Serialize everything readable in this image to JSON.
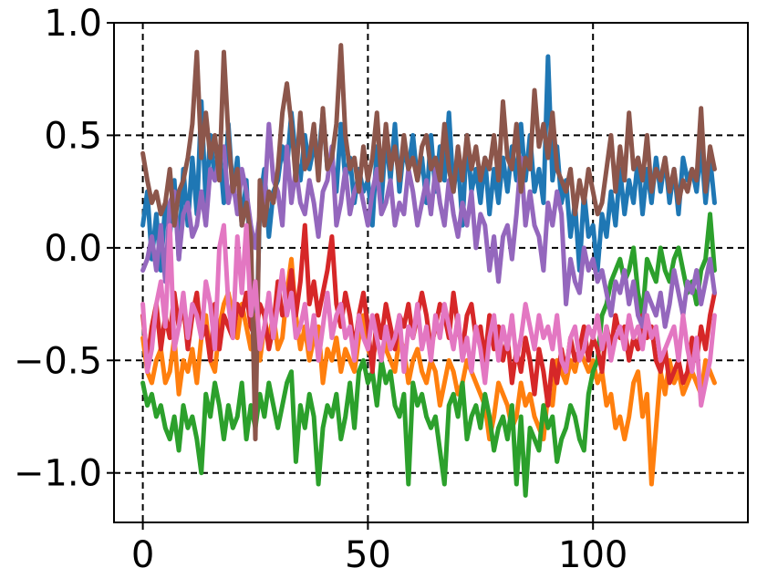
{
  "chart_data": {
    "type": "line",
    "title": "",
    "xlabel": "",
    "ylabel": "",
    "xlim": [
      -6.4,
      134.4
    ],
    "ylim": [
      -1.22,
      1.0
    ],
    "grid": true,
    "grid_style": "dashed",
    "legend": "none",
    "x_ticks": [
      0,
      50,
      100
    ],
    "x_tick_labels": [
      "0",
      "50",
      "100"
    ],
    "y_ticks": [
      1.0,
      0.5,
      0.0,
      -0.5,
      -1.0
    ],
    "y_tick_labels": [
      "1.0",
      "0.5",
      "0.0",
      "−0.5",
      "−1.0"
    ],
    "x": [
      0,
      1,
      2,
      3,
      4,
      5,
      6,
      7,
      8,
      9,
      10,
      11,
      12,
      13,
      14,
      15,
      16,
      17,
      18,
      19,
      20,
      21,
      22,
      23,
      24,
      25,
      26,
      27,
      28,
      29,
      30,
      31,
      32,
      33,
      34,
      35,
      36,
      37,
      38,
      39,
      40,
      41,
      42,
      43,
      44,
      45,
      46,
      47,
      48,
      49,
      50,
      51,
      52,
      53,
      54,
      55,
      56,
      57,
      58,
      59,
      60,
      61,
      62,
      63,
      64,
      65,
      66,
      67,
      68,
      69,
      70,
      71,
      72,
      73,
      74,
      75,
      76,
      77,
      78,
      79,
      80,
      81,
      82,
      83,
      84,
      85,
      86,
      87,
      88,
      89,
      90,
      91,
      92,
      93,
      94,
      95,
      96,
      97,
      98,
      99,
      100,
      101,
      102,
      103,
      104,
      105,
      106,
      107,
      108,
      109,
      110,
      111,
      112,
      113,
      114,
      115,
      116,
      117,
      118,
      119,
      120,
      121,
      122,
      123,
      124,
      125,
      126,
      127
    ],
    "series": [
      {
        "color": "#1f77b4",
        "values": [
          0.1,
          0.25,
          -0.05,
          0.15,
          -0.1,
          0.2,
          0.05,
          0.3,
          -0.05,
          0.35,
          0.1,
          0.4,
          0.15,
          0.65,
          0.2,
          0.5,
          0.3,
          0.45,
          0.2,
          0.55,
          0.25,
          0.4,
          0.1,
          0.3,
          -0.1,
          -0.6,
          0.2,
          0.35,
          0.05,
          0.25,
          0.3,
          0.45,
          0.35,
          0.6,
          0.4,
          0.3,
          0.5,
          0.35,
          0.45,
          0.4,
          0.6,
          0.35,
          0.4,
          0.25,
          0.55,
          0.3,
          0.4,
          0.2,
          0.35,
          0.25,
          0.3,
          0.1,
          0.45,
          0.2,
          0.5,
          0.3,
          0.55,
          0.25,
          0.45,
          0.35,
          0.5,
          0.3,
          0.4,
          0.2,
          0.5,
          0.25,
          0.45,
          0.3,
          0.6,
          0.25,
          0.4,
          0.1,
          0.5,
          0.25,
          0.35,
          0.2,
          0.4,
          0.15,
          0.35,
          0.2,
          0.4,
          0.25,
          0.45,
          0.3,
          0.55,
          0.3,
          0.5,
          0.25,
          0.35,
          0.2,
          0.85,
          0.3,
          0.45,
          0.2,
          0.3,
          0.05,
          0.2,
          -0.1,
          0.25,
          0.05,
          0.1,
          -0.1,
          0.15,
          0.05,
          0.25,
          0.1,
          0.35,
          0.15,
          0.3,
          0.2,
          0.4,
          0.15,
          0.35,
          0.2,
          0.4,
          0.25,
          0.4,
          0.2,
          0.35,
          0.15,
          0.4,
          0.3,
          0.35,
          0.25,
          0.45,
          0.2,
          0.4,
          0.2
        ]
      },
      {
        "color": "#ff7f0e",
        "values": [
          -0.4,
          -0.55,
          -0.6,
          -0.5,
          -0.45,
          -0.6,
          -0.55,
          -0.4,
          -0.65,
          -0.5,
          -0.55,
          -0.45,
          -0.6,
          -0.4,
          -0.3,
          -0.5,
          -0.55,
          -0.35,
          -0.25,
          -0.2,
          -0.3,
          -0.4,
          -0.25,
          -0.35,
          -0.45,
          -0.3,
          -0.5,
          -0.35,
          -0.4,
          -0.3,
          -0.45,
          -0.4,
          -0.2,
          -0.05,
          -0.3,
          -0.45,
          -0.35,
          -0.5,
          -0.4,
          -0.35,
          -0.6,
          -0.45,
          -0.5,
          -0.4,
          -0.55,
          -0.45,
          -0.5,
          -0.55,
          -0.4,
          -0.3,
          -0.45,
          -0.5,
          -0.4,
          -0.35,
          -0.45,
          -0.5,
          -0.55,
          -0.4,
          -0.45,
          -0.6,
          -0.5,
          -0.45,
          -0.55,
          -0.6,
          -0.5,
          -0.55,
          -0.7,
          -0.6,
          -0.5,
          -0.55,
          -0.65,
          -0.6,
          -0.5,
          -0.55,
          -0.6,
          -0.65,
          -0.7,
          -0.85,
          -0.75,
          -0.6,
          -0.65,
          -0.7,
          -0.8,
          -0.75,
          -0.6,
          -0.7,
          -0.65,
          -0.75,
          -0.8,
          -0.85,
          -0.65,
          -0.7,
          -0.5,
          -0.55,
          -0.6,
          -0.5,
          -0.55,
          -0.45,
          -0.5,
          -0.55,
          -0.5,
          -0.6,
          -0.55,
          -0.7,
          -0.65,
          -0.8,
          -0.75,
          -0.85,
          -0.75,
          -0.6,
          -0.55,
          -0.75,
          -0.65,
          -1.05,
          -0.8,
          -0.55,
          -0.65,
          -0.5,
          -0.6,
          -0.55,
          -0.65,
          -0.6,
          -0.55,
          -0.6,
          -0.65,
          -0.5,
          -0.55,
          -0.6
        ]
      },
      {
        "color": "#2ca02c",
        "values": [
          -0.6,
          -0.7,
          -0.65,
          -0.75,
          -0.7,
          -0.8,
          -0.85,
          -0.75,
          -0.9,
          -0.7,
          -0.8,
          -0.75,
          -0.85,
          -1.0,
          -0.65,
          -0.75,
          -0.6,
          -0.7,
          -0.85,
          -0.7,
          -0.8,
          -0.75,
          -0.6,
          -0.85,
          -0.7,
          -0.8,
          -0.65,
          -0.75,
          -0.6,
          -0.7,
          -0.8,
          -0.7,
          -0.6,
          -0.55,
          -0.95,
          -0.7,
          -0.8,
          -0.65,
          -0.75,
          -1.05,
          -0.8,
          -0.7,
          -0.75,
          -0.65,
          -0.85,
          -0.75,
          -0.6,
          -0.8,
          -0.55,
          -0.5,
          -0.6,
          -0.55,
          -0.7,
          -0.5,
          -0.6,
          -0.55,
          -0.7,
          -0.75,
          -0.65,
          -1.05,
          -0.6,
          -0.7,
          -0.65,
          -0.75,
          -0.8,
          -0.75,
          -0.9,
          -1.05,
          -0.7,
          -0.65,
          -0.75,
          -0.6,
          -0.85,
          -0.75,
          -0.7,
          -0.8,
          -0.65,
          -0.75,
          -0.9,
          -0.8,
          -0.75,
          -0.85,
          -0.7,
          -1.05,
          -0.75,
          -1.1,
          -0.8,
          -0.85,
          -0.9,
          -0.7,
          -0.8,
          -0.75,
          -0.95,
          -0.85,
          -0.8,
          -0.7,
          -0.75,
          -0.85,
          -0.9,
          -0.65,
          -0.55,
          -0.5,
          -0.3,
          -0.25,
          -0.15,
          -0.1,
          -0.05,
          -0.15,
          -0.1,
          0.0,
          -0.2,
          -0.3,
          -0.05,
          -0.1,
          -0.15,
          0.0,
          -0.1,
          -0.15,
          -0.05,
          0.0,
          -0.1,
          -0.2,
          -0.15,
          -0.25,
          -0.1,
          -0.05,
          0.15,
          -0.1
        ]
      },
      {
        "color": "#d62728",
        "values": [
          -0.3,
          -0.5,
          -0.35,
          -0.25,
          -0.45,
          -0.3,
          -0.4,
          -0.2,
          -0.35,
          -0.25,
          -0.45,
          -0.3,
          -0.2,
          -0.4,
          -0.35,
          -0.5,
          -0.25,
          -0.45,
          -0.3,
          -0.35,
          -0.4,
          -0.25,
          -0.3,
          -0.2,
          -0.35,
          -0.4,
          -0.25,
          -0.3,
          -0.45,
          -0.35,
          -0.15,
          -0.3,
          -0.25,
          -0.1,
          -0.3,
          -0.15,
          0.1,
          -0.25,
          -0.15,
          -0.3,
          -0.2,
          -0.1,
          0.05,
          -0.25,
          -0.35,
          -0.2,
          -0.3,
          -0.45,
          -0.3,
          -0.2,
          -0.35,
          -0.55,
          -0.3,
          -0.4,
          -0.25,
          -0.35,
          -0.45,
          -0.3,
          -0.35,
          -0.25,
          -0.4,
          -0.3,
          -0.2,
          -0.3,
          -0.45,
          -0.35,
          -0.25,
          -0.3,
          -0.4,
          -0.2,
          -0.35,
          -0.45,
          -0.3,
          -0.25,
          -0.4,
          -0.35,
          -0.5,
          -0.3,
          -0.45,
          -0.35,
          -0.5,
          -0.4,
          -0.6,
          -0.45,
          -0.55,
          -0.4,
          -0.5,
          -0.65,
          -0.45,
          -0.55,
          -0.7,
          -0.5,
          -0.6,
          -0.45,
          -0.55,
          -0.4,
          -0.5,
          -0.45,
          -0.35,
          -0.5,
          -0.4,
          -0.45,
          -0.55,
          -0.35,
          -0.45,
          -0.3,
          -0.4,
          -0.35,
          -0.5,
          -0.4,
          -0.45,
          -0.3,
          -0.4,
          -0.35,
          -0.5,
          -0.55,
          -0.45,
          -0.6,
          -0.55,
          -0.5,
          -0.6,
          -0.55,
          -0.4,
          -0.5,
          -0.35,
          -0.45,
          -0.3,
          -0.2
        ]
      },
      {
        "color": "#9467bd",
        "values": [
          -0.1,
          -0.05,
          0.05,
          -0.1,
          0.1,
          -0.15,
          0.2,
          0.25,
          -0.05,
          0.15,
          0.2,
          0.05,
          0.1,
          0.25,
          0.1,
          0.35,
          0.3,
          0.4,
          0.45,
          0.2,
          0.3,
          0.15,
          0.35,
          0.25,
          0.1,
          0.0,
          0.15,
          0.2,
          0.55,
          0.3,
          0.25,
          0.1,
          0.45,
          0.2,
          0.35,
          0.2,
          0.15,
          0.3,
          0.2,
          0.05,
          0.25,
          0.3,
          0.45,
          0.1,
          0.2,
          0.35,
          0.15,
          0.25,
          0.3,
          0.2,
          0.1,
          0.25,
          0.35,
          0.15,
          0.2,
          0.3,
          0.1,
          0.2,
          0.15,
          0.35,
          0.25,
          0.1,
          0.2,
          0.3,
          0.15,
          0.35,
          0.2,
          0.1,
          0.3,
          0.15,
          0.05,
          0.2,
          0.1,
          0.25,
          0.0,
          0.15,
          0.1,
          -0.1,
          0.05,
          -0.15,
          0.05,
          0.1,
          -0.05,
          0.15,
          0.4,
          0.1,
          0.25,
          0.1,
          0.05,
          -0.1,
          0.2,
          0.1,
          0.25,
          0.15,
          -0.25,
          -0.05,
          -0.15,
          -0.2,
          0.0,
          -0.1,
          -0.05,
          -0.15,
          -0.1,
          -0.2,
          -0.3,
          -0.15,
          -0.2,
          -0.1,
          -0.25,
          -0.15,
          -0.3,
          -0.35,
          -0.2,
          -0.25,
          -0.3,
          -0.2,
          -0.35,
          -0.25,
          -0.1,
          -0.2,
          -0.3,
          -0.15,
          -0.2,
          -0.1,
          -0.25,
          -0.15,
          -0.05,
          -0.2
        ]
      },
      {
        "color": "#8c564b",
        "values": [
          0.42,
          0.3,
          0.2,
          0.25,
          0.15,
          0.2,
          0.35,
          0.1,
          0.25,
          0.3,
          0.4,
          0.55,
          0.87,
          0.4,
          0.6,
          0.4,
          0.5,
          0.3,
          0.87,
          0.5,
          0.25,
          0.35,
          0.1,
          0.2,
          0.05,
          -0.85,
          0.3,
          0.1,
          0.25,
          0.2,
          0.35,
          0.6,
          0.73,
          0.55,
          0.3,
          0.6,
          0.35,
          0.4,
          0.55,
          0.3,
          0.62,
          0.35,
          0.4,
          0.55,
          0.9,
          0.5,
          0.35,
          0.4,
          0.25,
          0.45,
          0.3,
          0.4,
          0.6,
          0.3,
          0.55,
          0.35,
          0.45,
          0.3,
          0.5,
          0.35,
          0.4,
          0.3,
          0.45,
          0.5,
          0.35,
          0.4,
          0.3,
          0.55,
          0.35,
          0.25,
          0.45,
          0.3,
          0.5,
          0.35,
          0.45,
          0.3,
          0.4,
          0.35,
          0.5,
          0.3,
          0.65,
          0.4,
          0.35,
          0.55,
          0.25,
          0.4,
          0.35,
          0.7,
          0.45,
          0.55,
          0.4,
          0.6,
          0.35,
          0.3,
          0.25,
          0.35,
          0.15,
          0.3,
          0.2,
          0.35,
          0.25,
          0.15,
          0.2,
          0.35,
          0.5,
          0.25,
          0.45,
          0.3,
          0.6,
          0.35,
          0.4,
          0.3,
          0.5,
          0.25,
          0.35,
          0.3,
          0.4,
          0.25,
          0.35,
          0.2,
          0.3,
          0.25,
          0.35,
          0.3,
          0.62,
          0.25,
          0.45,
          0.35
        ]
      },
      {
        "color": "#e377c2",
        "values": [
          -0.25,
          -0.55,
          -0.45,
          -0.25,
          -0.15,
          -0.35,
          0.1,
          -0.45,
          -0.35,
          -0.2,
          -0.4,
          -0.25,
          -0.3,
          -0.4,
          -0.15,
          -0.25,
          -0.45,
          0.0,
          0.1,
          -0.25,
          -0.4,
          0.05,
          -0.2,
          0.1,
          -0.3,
          -0.15,
          -0.45,
          -0.35,
          -0.2,
          -0.4,
          -0.25,
          -0.1,
          -0.3,
          -0.2,
          -0.4,
          -0.35,
          -0.25,
          -0.45,
          -0.3,
          -0.5,
          -0.35,
          -0.2,
          -0.4,
          -0.3,
          -0.25,
          -0.4,
          -0.35,
          -0.5,
          -0.3,
          -0.4,
          -0.45,
          -0.3,
          -0.4,
          -0.5,
          -0.35,
          -0.45,
          -0.4,
          -0.3,
          -0.55,
          -0.35,
          -0.4,
          -0.25,
          -0.45,
          -0.35,
          -0.5,
          -0.3,
          -0.4,
          -0.25,
          -0.35,
          -0.45,
          -0.3,
          -0.5,
          -0.4,
          -0.55,
          -0.35,
          -0.45,
          -0.6,
          -0.4,
          -0.3,
          -0.5,
          -0.35,
          -0.45,
          -0.3,
          -0.5,
          -0.4,
          -0.25,
          -0.35,
          -0.45,
          -0.3,
          -0.4,
          -0.35,
          -0.45,
          -0.3,
          -0.5,
          -0.55,
          -0.4,
          -0.35,
          -0.5,
          -0.45,
          -0.35,
          -0.4,
          -0.3,
          -0.45,
          -0.35,
          -0.5,
          -0.4,
          -0.35,
          -0.45,
          -0.3,
          -0.4,
          -0.35,
          -0.45,
          -0.3,
          -0.4,
          -0.35,
          -0.5,
          -0.45,
          -0.4,
          -0.35,
          -0.5,
          -0.3,
          -0.45,
          -0.55,
          -0.4,
          -0.7,
          -0.6,
          -0.5,
          -0.3
        ]
      }
    ]
  }
}
